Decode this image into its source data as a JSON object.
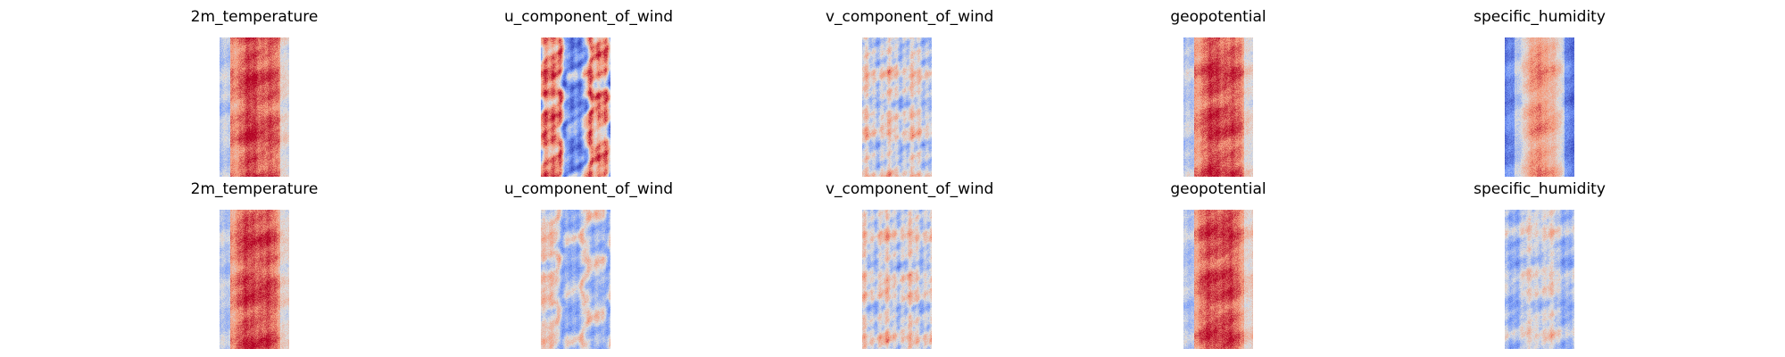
{
  "chart_data": [
    {
      "type": "heatmap",
      "title": "2m_temperature",
      "colormap": "coolwarm",
      "profile": "warm-core"
    },
    {
      "type": "heatmap",
      "title": "u_component_of_wind",
      "colormap": "coolwarm",
      "profile": "mixed-blue-red"
    },
    {
      "type": "heatmap",
      "title": "v_component_of_wind",
      "colormap": "coolwarm",
      "profile": "turbulent-neutral"
    },
    {
      "type": "heatmap",
      "title": "geopotential",
      "colormap": "coolwarm",
      "profile": "warm-core"
    },
    {
      "type": "heatmap",
      "title": "specific_humidity",
      "colormap": "coolwarm",
      "profile": "cool-edges-warm-core"
    },
    {
      "type": "heatmap",
      "title": "2m_temperature",
      "colormap": "coolwarm",
      "profile": "warm-core"
    },
    {
      "type": "heatmap",
      "title": "u_component_of_wind",
      "colormap": "coolwarm",
      "profile": "pale-mixed"
    },
    {
      "type": "heatmap",
      "title": "v_component_of_wind",
      "colormap": "coolwarm",
      "profile": "turbulent-neutral"
    },
    {
      "type": "heatmap",
      "title": "geopotential",
      "colormap": "coolwarm",
      "profile": "warm-core"
    },
    {
      "type": "heatmap",
      "title": "specific_humidity",
      "colormap": "coolwarm",
      "profile": "blue-mixed"
    }
  ]
}
